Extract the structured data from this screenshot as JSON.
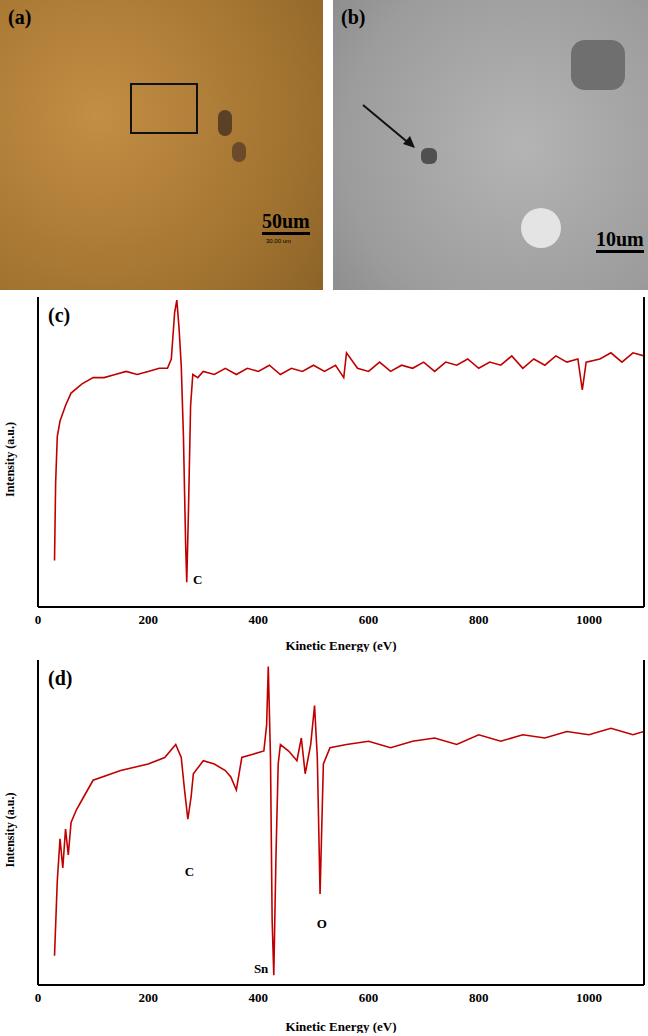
{
  "images": [
    {
      "panel": "(a)",
      "scale_bar": "50um",
      "scale_bar_caption": "30.00 um"
    },
    {
      "panel": "(b)",
      "scale_bar": "10um"
    }
  ],
  "chart_data": [
    {
      "type": "line",
      "panel": "(c)",
      "x_label": "Kinetic Energy (eV)",
      "y_label": "Intensity (a.u.)",
      "xlim": [
        0,
        1100
      ],
      "xticks": [
        0,
        200,
        400,
        600,
        800,
        1000
      ],
      "ylim": [
        0,
        100
      ],
      "tick_labels": "x",
      "color": "#c00000",
      "x": [
        30,
        32,
        35,
        40,
        50,
        60,
        80,
        100,
        120,
        140,
        160,
        180,
        200,
        220,
        235,
        242,
        248,
        252,
        256,
        260,
        264,
        268,
        270,
        273,
        277,
        281,
        290,
        300,
        320,
        340,
        360,
        380,
        400,
        420,
        440,
        460,
        480,
        500,
        520,
        540,
        555,
        560,
        580,
        600,
        620,
        640,
        660,
        680,
        700,
        720,
        740,
        760,
        780,
        800,
        820,
        840,
        860,
        880,
        900,
        920,
        940,
        960,
        980,
        988,
        995,
        1020,
        1040,
        1060,
        1080,
        1100
      ],
      "values": [
        15,
        40,
        55,
        60,
        65,
        69,
        72,
        74,
        74,
        75,
        76,
        75,
        76,
        77,
        77,
        80,
        95,
        99,
        90,
        78,
        55,
        20,
        8,
        30,
        65,
        75,
        74,
        76,
        75,
        77,
        75,
        77,
        76,
        78,
        75,
        77,
        76,
        78,
        76,
        78,
        74,
        82,
        77,
        76,
        79,
        76,
        78,
        77,
        79,
        76,
        79,
        78,
        80,
        77,
        79,
        78,
        81,
        77,
        80,
        78,
        81,
        79,
        80,
        70,
        79,
        80,
        82,
        79,
        82,
        81
      ],
      "annotations": [
        {
          "text": "C",
          "x": 290,
          "y": 9
        }
      ]
    },
    {
      "type": "line",
      "panel": "(d)",
      "x_label": "Kinetic Energy (eV)",
      "y_label": "Intensity (a.u.)",
      "xlim": [
        0,
        1100
      ],
      "xticks": [
        0,
        200,
        400,
        600,
        800,
        1000
      ],
      "ylim": [
        0,
        100
      ],
      "tick_labels": "x",
      "color": "#c00000",
      "x": [
        30,
        35,
        40,
        45,
        50,
        55,
        60,
        70,
        80,
        100,
        150,
        200,
        230,
        250,
        260,
        266,
        272,
        278,
        282,
        300,
        320,
        340,
        350,
        360,
        370,
        390,
        410,
        415,
        418,
        422,
        425,
        428,
        432,
        436,
        440,
        455,
        470,
        478,
        485,
        495,
        502,
        507,
        512,
        518,
        530,
        560,
        600,
        640,
        680,
        720,
        760,
        800,
        840,
        880,
        920,
        960,
        1000,
        1040,
        1080,
        1100
      ],
      "values": [
        9,
        32,
        45,
        36,
        48,
        40,
        50,
        54,
        57,
        63,
        66,
        68,
        70,
        74,
        70,
        60,
        51,
        58,
        65,
        69,
        68,
        66,
        64,
        60,
        70,
        71,
        72,
        80,
        98,
        70,
        20,
        3,
        40,
        68,
        74,
        72,
        69,
        76,
        65,
        74,
        86,
        70,
        28,
        68,
        73,
        74,
        75,
        73,
        75,
        76,
        74,
        77,
        75,
        77,
        76,
        78,
        77,
        79,
        77,
        78
      ],
      "annotations": [
        {
          "text": "C",
          "x": 275,
          "y": 35
        },
        {
          "text": "Sn",
          "x": 405,
          "y": 5
        },
        {
          "text": "O",
          "x": 515,
          "y": 19
        }
      ]
    }
  ]
}
